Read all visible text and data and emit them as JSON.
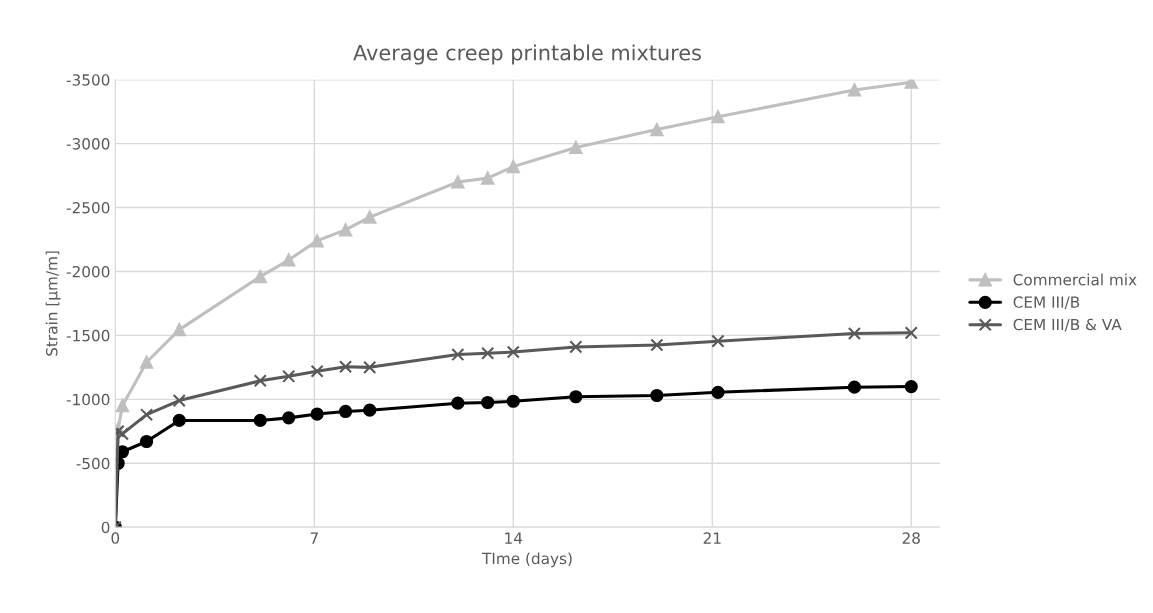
{
  "chart_data": {
    "type": "line",
    "title": "Average creep printable mixtures",
    "xlabel": "TIme (days)",
    "ylabel": "Strain [µm/m]",
    "x": [
      0,
      0.1,
      0.25,
      1.1,
      2.25,
      5.1,
      6.1,
      7.1,
      8.1,
      8.95,
      12.05,
      13.1,
      14,
      16.2,
      19.05,
      21.2,
      26,
      28
    ],
    "series": [
      {
        "name": "Commercial mix",
        "color": "#bfbfbf",
        "marker": "triangle",
        "values": [
          0,
          -770,
          -950,
          -1290,
          -1545,
          -1960,
          -2090,
          -2240,
          -2325,
          -2425,
          -2700,
          -2730,
          -2820,
          -2970,
          -3110,
          -3210,
          -3420,
          -3480
        ]
      },
      {
        "name": "CEM III/B",
        "color": "#000000",
        "marker": "circle",
        "values": [
          0,
          -500,
          -590,
          -670,
          -835,
          -835,
          -855,
          -885,
          -905,
          -915,
          -970,
          -975,
          -985,
          -1020,
          -1030,
          -1055,
          -1095,
          -1100
        ]
      },
      {
        "name": "CEM III/B & VA",
        "color": "#595959",
        "marker": "cross",
        "values": [
          0,
          -750,
          -730,
          -880,
          -990,
          -1145,
          -1180,
          -1220,
          -1255,
          -1250,
          -1350,
          -1360,
          -1370,
          -1410,
          -1425,
          -1455,
          -1515,
          -1520
        ]
      }
    ],
    "xlim": [
      0,
      29
    ],
    "xticks": [
      0,
      7,
      14,
      21,
      28
    ],
    "ylim": [
      0,
      -3500
    ],
    "yticks": [
      0,
      -500,
      -1000,
      -1500,
      -2000,
      -2500,
      -3000,
      -3500
    ],
    "grid": true,
    "legend": "right",
    "line_style": "solid"
  }
}
